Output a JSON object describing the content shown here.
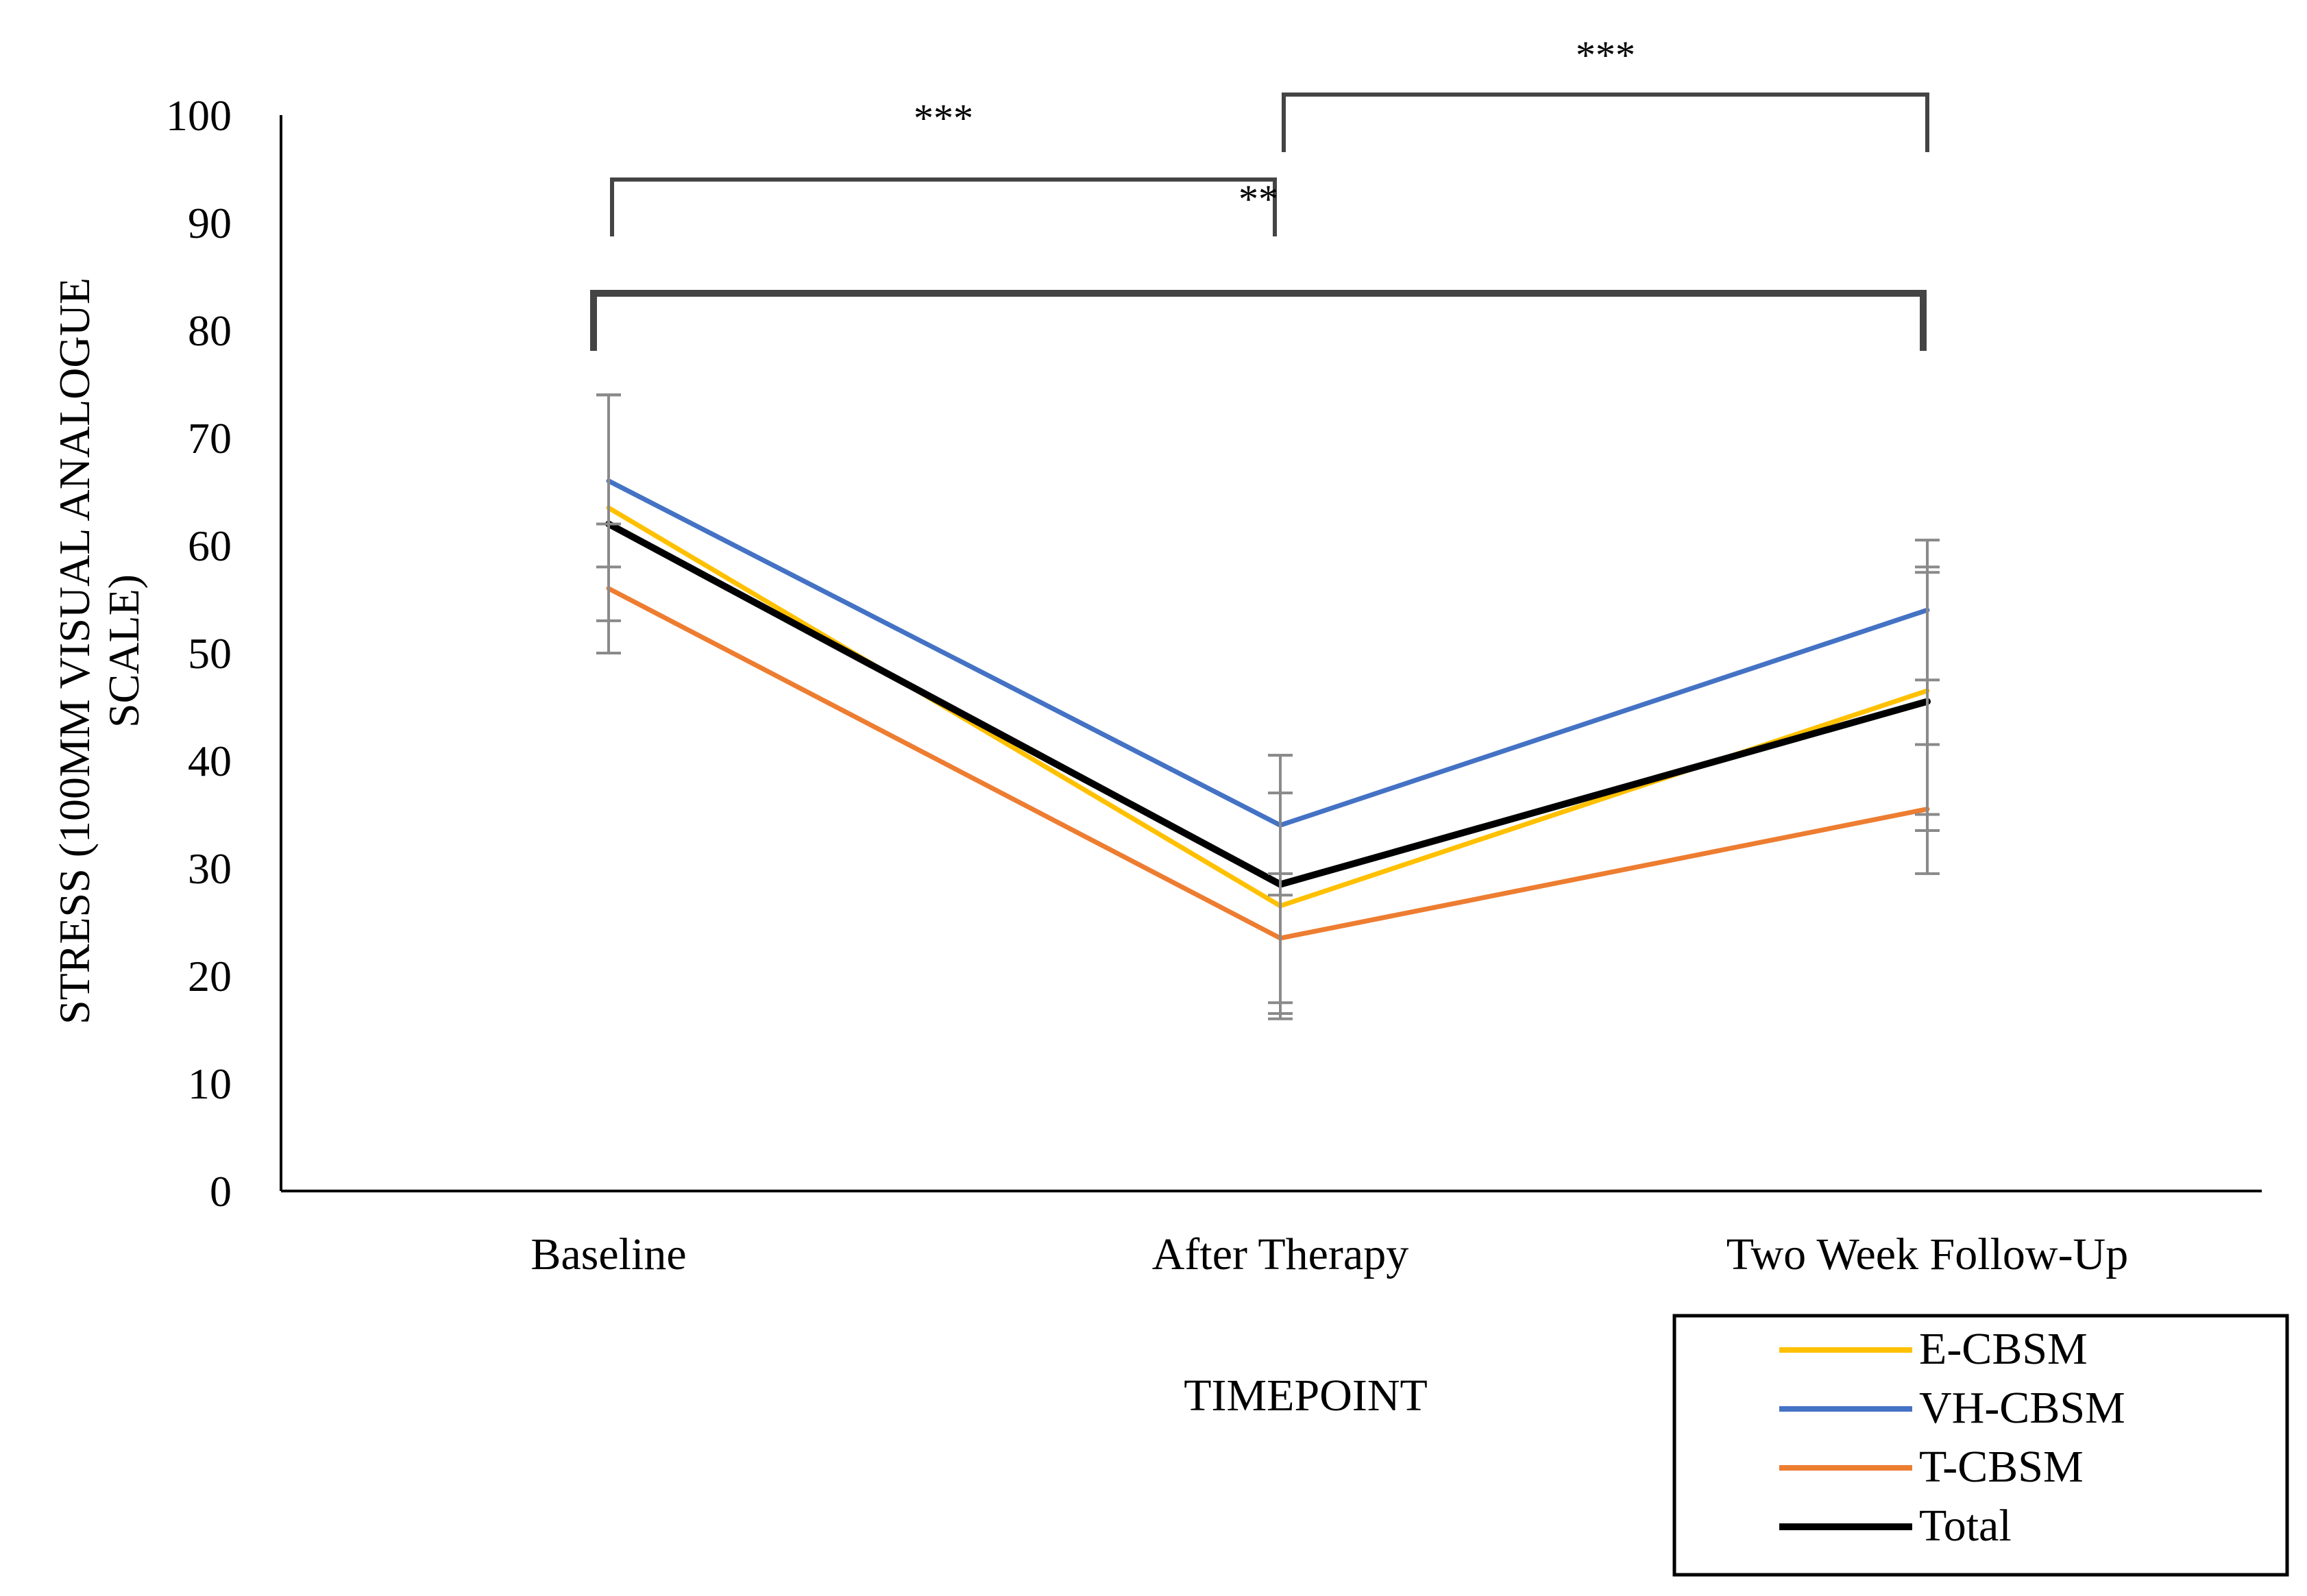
{
  "chart_data": {
    "type": "line",
    "title": "",
    "xlabel": "TIMEPOINT",
    "ylabel": "STRESS (100MM VISUAL ANALOGUE SCALE)",
    "categories": [
      "Baseline",
      "After Therapy",
      "Two Week Follow-Up"
    ],
    "ylim": [
      0,
      100
    ],
    "yticks": [
      0,
      10,
      20,
      30,
      40,
      50,
      60,
      70,
      80,
      90,
      100
    ],
    "grid": false,
    "legend": "bottom-right",
    "series": [
      {
        "name": "E-CBSM",
        "color": "#FFC000",
        "values": [
          63.5,
          26.5,
          46.5
        ],
        "error": [
          10.5,
          10.5,
          11.5
        ]
      },
      {
        "name": "VH-CBSM",
        "color": "#4472C4",
        "values": [
          66.0,
          34.0,
          54.0
        ],
        "error": [
          8.0,
          6.5,
          6.5
        ]
      },
      {
        "name": "T-CBSM",
        "color": "#ED7D31",
        "values": [
          56.0,
          23.5,
          35.5
        ],
        "error": [
          6.0,
          6.0,
          6.0
        ]
      },
      {
        "name": "Total",
        "color": "#000000",
        "values": [
          62.0,
          28.5,
          45.5
        ],
        "error": [
          12.0,
          12.0,
          12.0
        ]
      }
    ],
    "significance": [
      {
        "from": "Baseline",
        "to": "After Therapy",
        "label": "***"
      },
      {
        "from": "After Therapy",
        "to": "Two Week Follow-Up",
        "label": "***"
      },
      {
        "from": "Baseline",
        "to": "Two Week Follow-Up",
        "label": "**"
      }
    ]
  }
}
